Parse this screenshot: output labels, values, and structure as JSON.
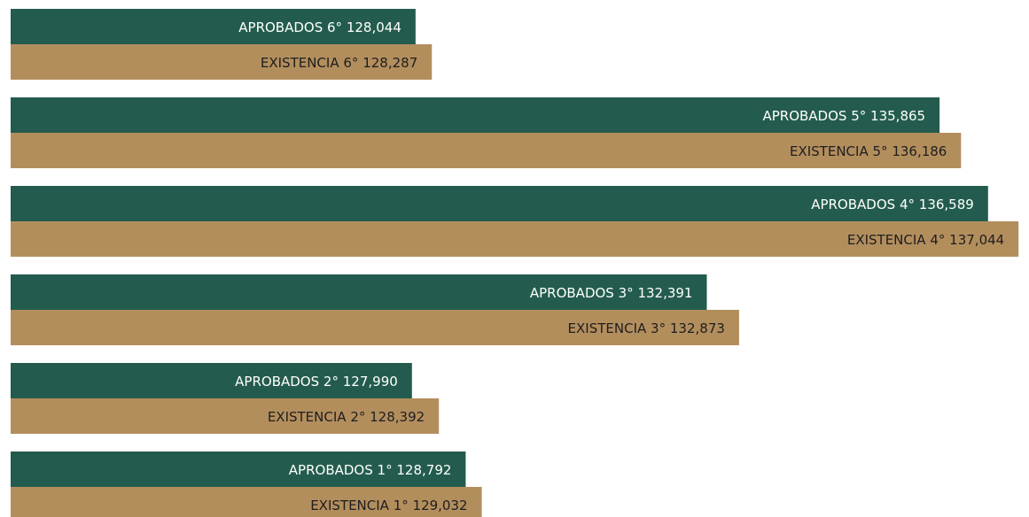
{
  "chart_data": {
    "type": "barh",
    "categories": [
      "6°",
      "5°",
      "4°",
      "3°",
      "2°",
      "1°"
    ],
    "series": [
      {
        "name": "APROBADOS",
        "color": "#235c4e",
        "text_color": "#ffffff",
        "values": [
          128044,
          135865,
          136589,
          132391,
          127990,
          128792
        ],
        "value_labels": [
          "128,044",
          "135,865",
          "136,589",
          "132,391",
          "127,990",
          "128,792"
        ]
      },
      {
        "name": "EXISTENCIA",
        "color": "#b38e5d",
        "text_color": "#1e1e1e",
        "values": [
          128287,
          136186,
          137044,
          132873,
          128392,
          129032
        ],
        "value_labels": [
          "128,287",
          "136,186",
          "137,044",
          "132,873",
          "128,392",
          "129,032"
        ]
      }
    ],
    "xlim": [
      122000,
      137200
    ]
  }
}
